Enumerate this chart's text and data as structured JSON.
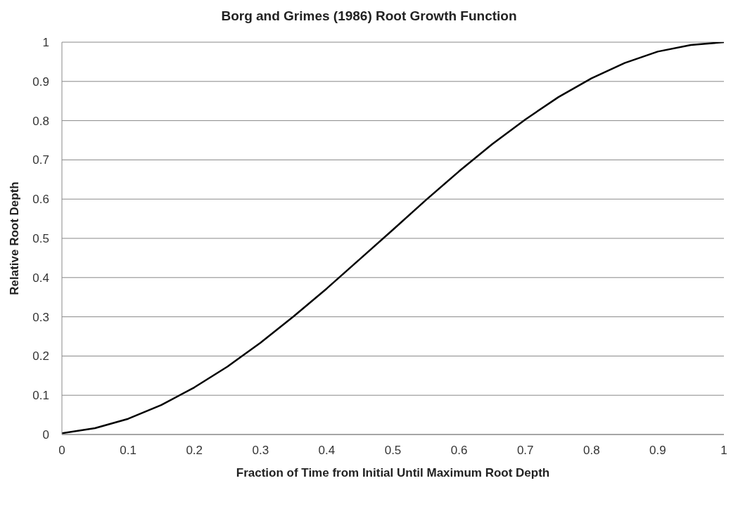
{
  "chart_data": {
    "type": "line",
    "title": "Borg and Grimes (1986) Root Growth Function",
    "xlabel": "Fraction of Time from Initial Until Maximum Root Depth",
    "ylabel": "Relative Root Depth",
    "x": [
      0,
      0.05,
      0.1,
      0.15,
      0.2,
      0.25,
      0.3,
      0.35,
      0.4,
      0.45,
      0.5,
      0.55,
      0.6,
      0.65,
      0.7,
      0.75,
      0.8,
      0.85,
      0.9,
      0.95,
      1
    ],
    "series": [
      {
        "color": "#000000",
        "values": [
          0.003,
          0.016,
          0.04,
          0.075,
          0.12,
          0.173,
          0.234,
          0.301,
          0.372,
          0.447,
          0.522,
          0.598,
          0.671,
          0.74,
          0.803,
          0.86,
          0.908,
          0.947,
          0.976,
          0.993,
          1
        ]
      }
    ],
    "xlim": [
      0,
      1
    ],
    "xticks": [
      0,
      0.1,
      0.2,
      0.3,
      0.4,
      0.5,
      0.6,
      0.7,
      0.8,
      0.9,
      1
    ],
    "ylim": [
      0,
      1
    ],
    "yticks": [
      0,
      0.1,
      0.2,
      0.3,
      0.4,
      0.5,
      0.6,
      0.7,
      0.8,
      0.9,
      1
    ],
    "grid": "y",
    "marker": "none",
    "line_style": "solid"
  }
}
